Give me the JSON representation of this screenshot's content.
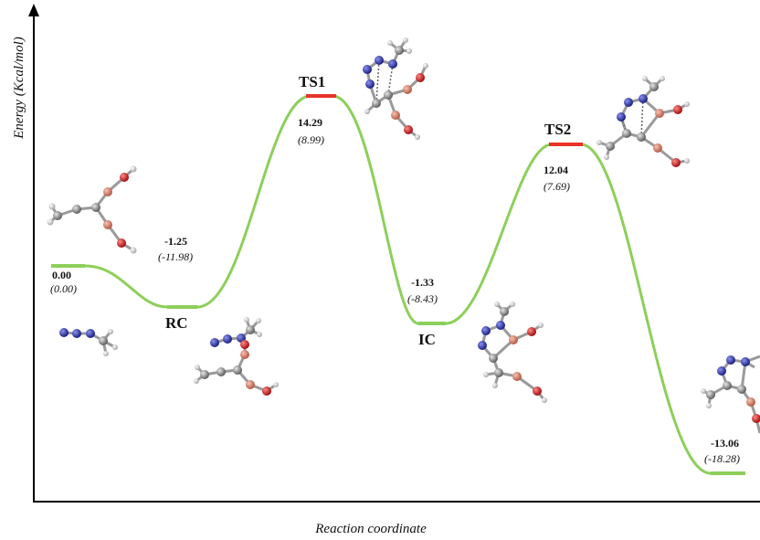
{
  "axes": {
    "ylabel": "Energy (Kcal/mol)",
    "xlabel": "Reaction coordinate"
  },
  "colors": {
    "curve": "#8dcf5a",
    "transition_bar": "#e8332a",
    "stable_bar": "#8dcf5a",
    "atom_carbon": "#7d7d7d",
    "atom_boron": "#d9826a",
    "atom_oxygen": "#d2181c",
    "atom_nitrogen": "#2a34b5",
    "atom_hydrogen": "#dcdcdc"
  },
  "states": [
    {
      "id": "reactants",
      "label": "",
      "value": "0.00",
      "sub": "(0.00)",
      "kind": "stable"
    },
    {
      "id": "rc",
      "label": "RC",
      "value": "-1.25",
      "sub": "(-11.98)",
      "kind": "stable"
    },
    {
      "id": "ts1",
      "label": "TS1",
      "value": "14.29",
      "sub": "(8.99)",
      "kind": "transition"
    },
    {
      "id": "ic",
      "label": "IC",
      "value": "-1.33",
      "sub": "(-8.43)",
      "kind": "stable"
    },
    {
      "id": "ts2",
      "label": "TS2",
      "value": "12.04",
      "sub": "(7.69)",
      "kind": "transition"
    },
    {
      "id": "product",
      "label": "",
      "value": "-13.06",
      "sub": "(-18.28)",
      "kind": "stable"
    }
  ],
  "molecules": [
    {
      "id": "diboron-alkyne",
      "icon": "ball-and-stick-molecule"
    },
    {
      "id": "methyl-azide",
      "icon": "ball-and-stick-molecule"
    },
    {
      "id": "rc-complex",
      "icon": "ball-and-stick-molecule"
    },
    {
      "id": "ts1-structure",
      "icon": "ball-and-stick-molecule"
    },
    {
      "id": "ic-structure",
      "icon": "ball-and-stick-molecule"
    },
    {
      "id": "ts2-structure",
      "icon": "ball-and-stick-molecule"
    },
    {
      "id": "product-structure",
      "icon": "ball-and-stick-molecule"
    }
  ]
}
